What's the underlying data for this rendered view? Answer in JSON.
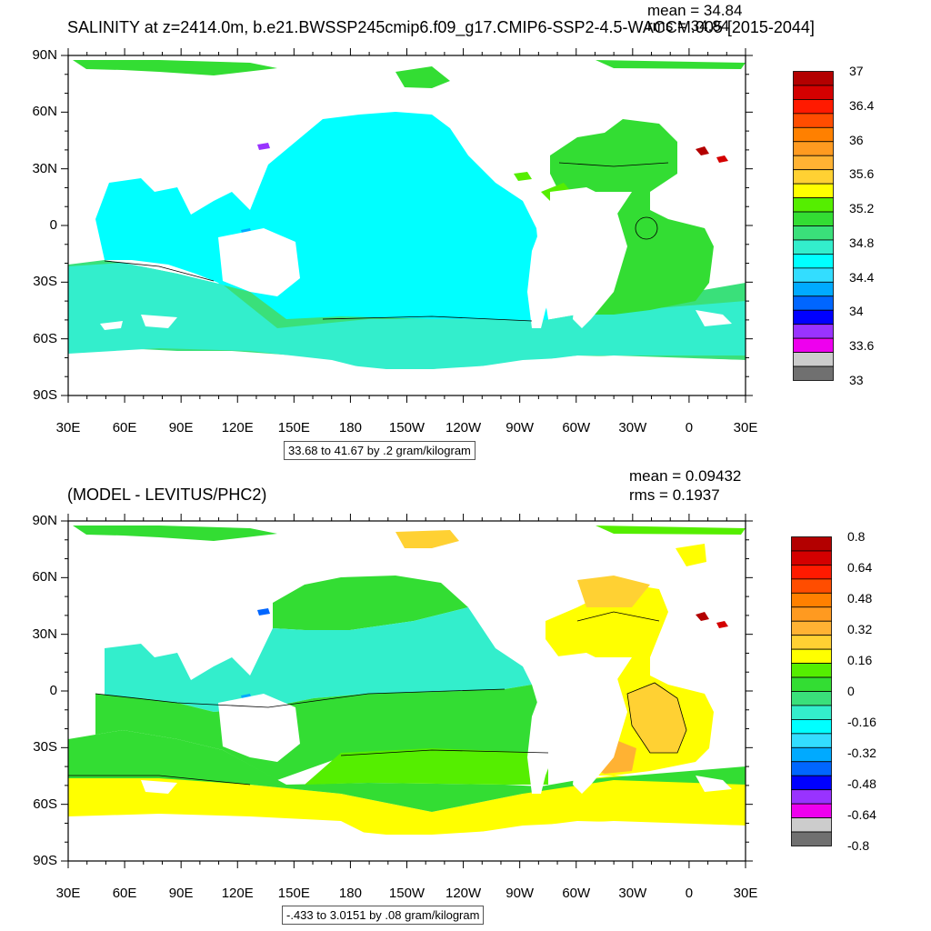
{
  "panels": [
    {
      "id": "top",
      "title": "SALINITY at z=2414.0m, b.e21.BWSSP245cmip6.f09_g17.CMIP6-SSP2-4.5-WACCM.005 [2015-2044]",
      "mean_label": "mean = 34.84",
      "rms_label": "rms = 34.84",
      "info": "33.68 to 41.67 by .2 gram/kilogram",
      "lat_labels": [
        "90N",
        "60N",
        "30N",
        "0",
        "30S",
        "60S",
        "90S"
      ],
      "lon_labels": [
        "30E",
        "60E",
        "90E",
        "120E",
        "150E",
        "180",
        "150W",
        "120W",
        "90W",
        "60W",
        "30W",
        "0",
        "30E"
      ],
      "colorbar": {
        "colors": [
          "#b30000",
          "#d40000",
          "#ff1a00",
          "#ff4d00",
          "#ff8000",
          "#ff9a20",
          "#ffb233",
          "#ffd133",
          "#ffff00",
          "#55ee00",
          "#33dd33",
          "#3ae07a",
          "#33eecc",
          "#00ffff",
          "#33ddff",
          "#00aaff",
          "#0066ff",
          "#0000ff",
          "#9933ff",
          "#ee00ee",
          "#cccccc",
          "#707070"
        ],
        "labels": [
          "37",
          "36.4",
          "36",
          "35.6",
          "35.2",
          "34.8",
          "34.4",
          "34",
          "33.6",
          "33"
        ]
      }
    },
    {
      "id": "bottom",
      "title": "(MODEL - LEVITUS/PHC2)",
      "mean_label": "mean = 0.09432",
      "rms_label": "rms = 0.1937",
      "info": "-.433 to 3.0151 by .08 gram/kilogram",
      "lat_labels": [
        "90N",
        "60N",
        "30N",
        "0",
        "30S",
        "60S",
        "90S"
      ],
      "lon_labels": [
        "30E",
        "60E",
        "90E",
        "120E",
        "150E",
        "180",
        "150W",
        "120W",
        "90W",
        "60W",
        "30W",
        "0",
        "30E"
      ],
      "colorbar": {
        "colors": [
          "#b30000",
          "#d40000",
          "#ff1a00",
          "#ff4d00",
          "#ff8000",
          "#ff9a20",
          "#ffb233",
          "#ffd133",
          "#ffff00",
          "#55ee00",
          "#33dd33",
          "#3ae07a",
          "#33eecc",
          "#00ffff",
          "#33ddff",
          "#00aaff",
          "#0066ff",
          "#0000ff",
          "#9933ff",
          "#ee00ee",
          "#cccccc",
          "#707070"
        ],
        "labels": [
          "0.8",
          "0.64",
          "0.48",
          "0.32",
          "0.16",
          "0",
          "-0.16",
          "-0.32",
          "-0.48",
          "-0.64",
          "-0.8"
        ]
      }
    }
  ]
}
